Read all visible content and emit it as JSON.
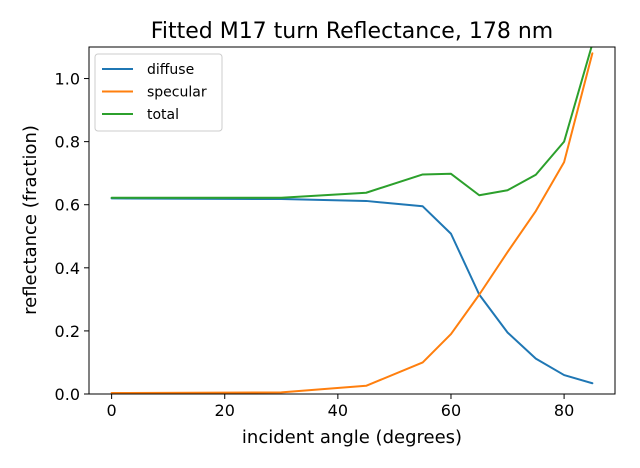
{
  "chart_data": {
    "type": "line",
    "title": "Fitted M17 turn Reflectance, 178 nm",
    "xlabel": "incident angle (degrees)",
    "ylabel": "reflectance (fraction)",
    "xlim": [
      -4,
      89
    ],
    "ylim": [
      0,
      1.1
    ],
    "xticks": [
      0,
      20,
      40,
      60,
      80
    ],
    "yticks": [
      0.0,
      0.2,
      0.4,
      0.6,
      0.8,
      1.0
    ],
    "xtick_labels": [
      "0",
      "20",
      "40",
      "60",
      "80"
    ],
    "ytick_labels": [
      "0.0",
      "0.2",
      "0.4",
      "0.6",
      "0.8",
      "1.0"
    ],
    "grid": false,
    "legend_position": "top-left",
    "x": [
      0,
      30,
      45,
      55,
      60,
      65,
      70,
      75,
      80,
      85
    ],
    "series": [
      {
        "name": "diffuse",
        "color": "#1f77b4",
        "values": [
          0.62,
          0.618,
          0.612,
          0.595,
          0.508,
          0.315,
          0.195,
          0.112,
          0.06,
          0.034
        ]
      },
      {
        "name": "specular",
        "color": "#ff7f0e",
        "values": [
          0.003,
          0.005,
          0.026,
          0.1,
          0.19,
          0.315,
          0.45,
          0.58,
          0.735,
          1.08
        ]
      },
      {
        "name": "total",
        "color": "#2ca02c",
        "values": [
          0.622,
          0.622,
          0.638,
          0.696,
          0.698,
          0.63,
          0.646,
          0.695,
          0.8,
          1.11
        ]
      }
    ]
  }
}
